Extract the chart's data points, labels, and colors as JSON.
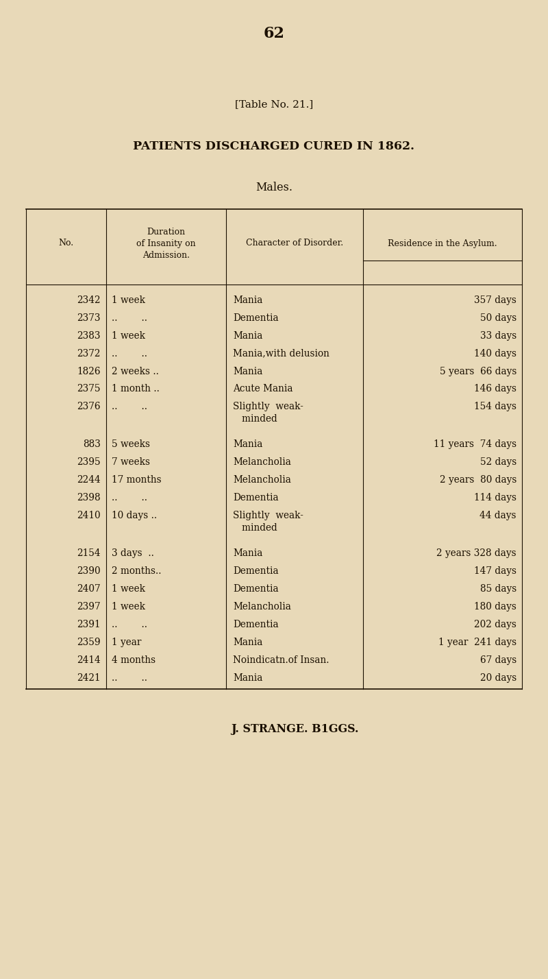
{
  "page_number": "62",
  "table_label": "[Table No. 21.]",
  "title": "PATIENTS DISCHARGED CURED IN 1862.",
  "subtitle": "Males.",
  "footer": "J. STRANGE. B1GGS.",
  "bg_color": "#e8d9b8",
  "text_color": "#1a0f00",
  "col_headers": [
    "No.",
    "Duration\nof Insanity on\nAdmission.",
    "Character of Disorder.",
    "Residence in the Asylum."
  ],
  "rows": [
    [
      "2342",
      "1 week",
      "Mania",
      "357 days",
      false
    ],
    [
      "2373",
      "..        ..",
      "Dementia",
      "50 days",
      false
    ],
    [
      "2383",
      "1 week",
      "Mania",
      "33 days",
      false
    ],
    [
      "2372",
      "..        ..",
      "Mania,with delusion",
      "140 days",
      false
    ],
    [
      "1826",
      "2 weeks ..",
      "Mania",
      "5 years  66 days",
      false
    ],
    [
      "2375",
      "1 month ..",
      "Acute Mania",
      "146 days",
      false
    ],
    [
      "2376",
      "..        ..",
      "Slightly  weak-\n   minded",
      "154 days",
      true
    ],
    [
      "883",
      "5 weeks",
      "Mania",
      "11 years  74 days",
      false
    ],
    [
      "2395",
      "7 weeks",
      "Melancholia",
      "52 days",
      false
    ],
    [
      "2244",
      "17 months",
      "Melancholia",
      "2 years  80 days",
      false
    ],
    [
      "2398",
      "..        ..",
      "Dementia",
      "114 days",
      false
    ],
    [
      "2410",
      "10 days ..",
      "Slightly  weak-\n   minded",
      "44 days",
      true
    ],
    [
      "2154",
      "3 days  ..",
      "Mania",
      "2 years 328 days",
      false
    ],
    [
      "2390",
      "2 months..",
      "Dementia",
      "147 days",
      false
    ],
    [
      "2407",
      "1 week",
      "Dementia",
      "85 days",
      false
    ],
    [
      "2397",
      "1 week",
      "Melancholia",
      "180 days",
      false
    ],
    [
      "2391",
      "..        ..",
      "Dementia",
      "202 days",
      false
    ],
    [
      "2359",
      "1 year",
      "Mania",
      "1 year  241 days",
      false
    ],
    [
      "2414",
      "4 months",
      "Noindicatn.of Insan.",
      "67 days",
      false
    ],
    [
      "2421",
      "..        ..",
      "Mania",
      "20 days",
      false
    ]
  ],
  "group_gaps_after": [
    6,
    11
  ],
  "figwidth": 8.0,
  "figheight": 14.28,
  "dpi": 100
}
